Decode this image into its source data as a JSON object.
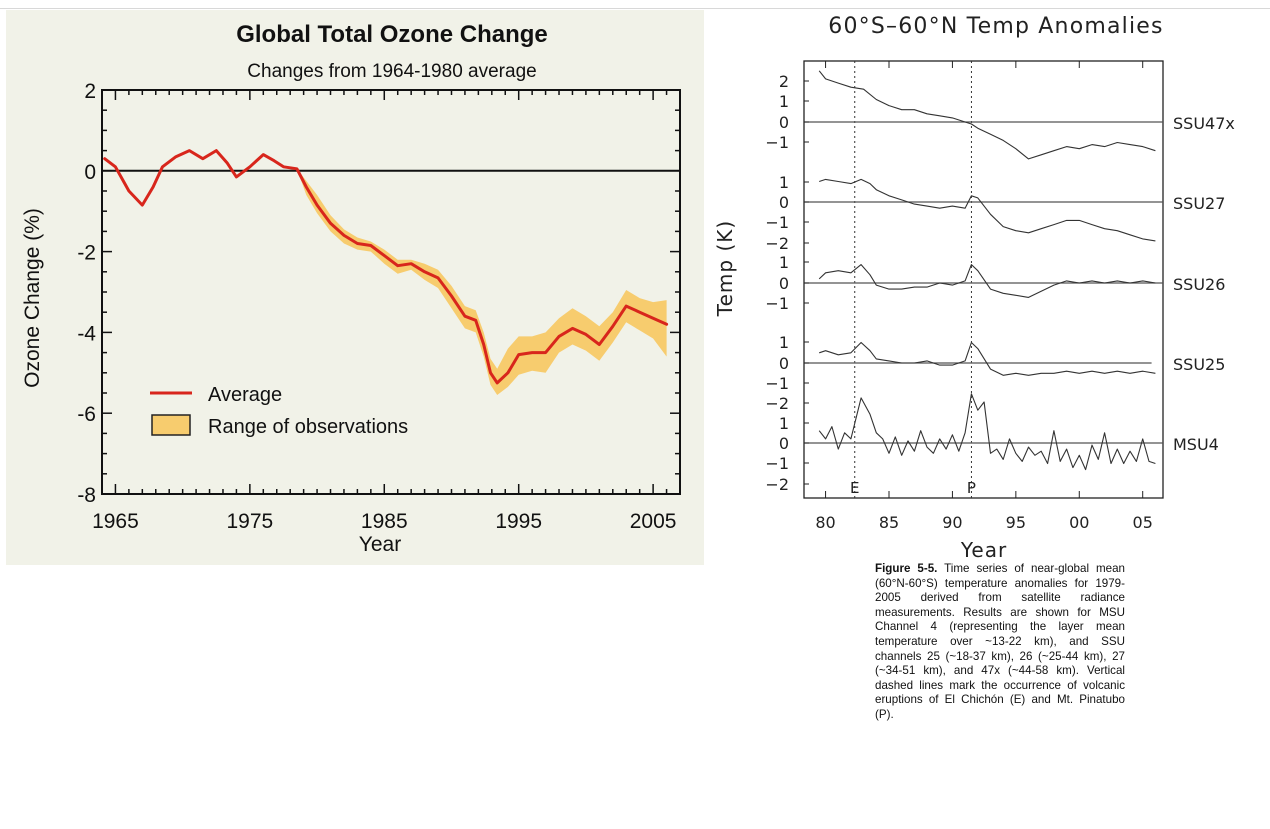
{
  "chart_data": [
    {
      "type": "area",
      "title": "Global Total Ozone Change",
      "subtitle": "Changes from 1964-1980 average",
      "xlabel": "Year",
      "ylabel": "Ozone Change (%)",
      "xlim": [
        1964,
        2007
      ],
      "ylim": [
        -8,
        2
      ],
      "x_ticks": [
        1965,
        1975,
        1985,
        1995,
        2005
      ],
      "y_ticks": [
        2,
        0,
        -2,
        -4,
        -6,
        -8
      ],
      "grid": false,
      "legend_position": "lower-left",
      "colors": {
        "average": "#d8261c",
        "range_fill": "#f7cc6e",
        "range_edge": "#8a6a1e",
        "background": "#f1f2e8"
      },
      "series": [
        {
          "name": "Average",
          "x": [
            1964.2,
            1965,
            1966,
            1967,
            1967.8,
            1968.5,
            1969.5,
            1970.5,
            1971.5,
            1972.5,
            1973.3,
            1974,
            1975,
            1976,
            1976.8,
            1977.5,
            1978.5,
            1979.2,
            1980,
            1981,
            1982,
            1983,
            1984,
            1985,
            1986,
            1987,
            1988,
            1989,
            1990,
            1991,
            1991.8,
            1992.4,
            1992.9,
            1993.4,
            1994.2,
            1995,
            1996,
            1997,
            1998,
            1999,
            2000,
            2001,
            2002,
            2003,
            2004,
            2005,
            2006
          ],
          "values": [
            0.3,
            0.1,
            -0.5,
            -0.85,
            -0.4,
            0.1,
            0.35,
            0.5,
            0.3,
            0.5,
            0.2,
            -0.15,
            0.1,
            0.4,
            0.25,
            0.1,
            0.05,
            -0.4,
            -0.85,
            -1.3,
            -1.6,
            -1.8,
            -1.85,
            -2.1,
            -2.35,
            -2.3,
            -2.5,
            -2.65,
            -3.1,
            -3.6,
            -3.7,
            -4.3,
            -5.0,
            -5.25,
            -5.0,
            -4.55,
            -4.5,
            -4.5,
            -4.1,
            -3.9,
            -4.05,
            -4.3,
            -3.85,
            -3.35,
            -3.5,
            -3.65,
            -3.8
          ]
        },
        {
          "name": "Range of observations",
          "x": [
            1978.5,
            1979.2,
            1980,
            1981,
            1982,
            1983,
            1984,
            1985,
            1986,
            1987,
            1988,
            1989,
            1990,
            1991,
            1991.8,
            1992.4,
            1992.9,
            1993.4,
            1994.2,
            1995,
            1996,
            1997,
            1998,
            1999,
            2000,
            2001,
            2002,
            2003,
            2004,
            2005,
            2006
          ],
          "upper": [
            0.05,
            -0.25,
            -0.6,
            -1.1,
            -1.45,
            -1.65,
            -1.75,
            -1.95,
            -2.2,
            -2.2,
            -2.3,
            -2.45,
            -2.85,
            -3.35,
            -3.45,
            -4.0,
            -4.65,
            -4.9,
            -4.4,
            -4.1,
            -4.1,
            -4.0,
            -3.65,
            -3.4,
            -3.6,
            -3.85,
            -3.5,
            -2.95,
            -3.15,
            -3.25,
            -3.2
          ],
          "lower": [
            0.05,
            -0.6,
            -1.05,
            -1.5,
            -1.8,
            -1.95,
            -2.0,
            -2.3,
            -2.55,
            -2.45,
            -2.7,
            -2.9,
            -3.4,
            -3.9,
            -4.0,
            -4.6,
            -5.3,
            -5.55,
            -5.35,
            -5.05,
            -4.95,
            -5.0,
            -4.5,
            -4.3,
            -4.45,
            -4.7,
            -4.25,
            -3.75,
            -3.95,
            -4.15,
            -4.6
          ]
        }
      ]
    },
    {
      "type": "line",
      "title": "60°S–60°N Temp Anomalies",
      "xlabel": "Year",
      "ylabel": "Temp (K)",
      "xlim": [
        1978.3,
        2006.6
      ],
      "x_ticks": [
        80,
        85,
        90,
        95,
        "00",
        "05"
      ],
      "grid": false,
      "annotations": [
        {
          "label": "E",
          "x": 1982.3,
          "meaning": "El Chichón"
        },
        {
          "label": "P",
          "x": 1991.5,
          "meaning": "Mt. Pinatubo"
        }
      ],
      "series": [
        {
          "name": "SSU47x",
          "y_ticks": [
            2,
            1,
            0,
            -1
          ],
          "x": [
            1979.5,
            1980,
            1981,
            1982,
            1983,
            1984,
            1985,
            1986,
            1987,
            1988,
            1989,
            1990,
            1991,
            1991.5,
            1992,
            1993,
            1994,
            1995,
            1996,
            1997,
            1998,
            1999,
            2000,
            2001,
            2002,
            2003,
            2004,
            2005,
            2006
          ],
          "values": [
            2.5,
            2.1,
            1.9,
            1.7,
            1.6,
            1.1,
            0.8,
            0.6,
            0.6,
            0.4,
            0.3,
            0.2,
            0.0,
            -0.1,
            -0.3,
            -0.6,
            -0.9,
            -1.3,
            -1.8,
            -1.6,
            -1.4,
            -1.2,
            -1.3,
            -1.1,
            -1.2,
            -1.0,
            -1.1,
            -1.2,
            -1.4
          ]
        },
        {
          "name": "SSU27",
          "y_ticks": [
            1,
            0,
            -1,
            -2
          ],
          "x": [
            1979.5,
            1980,
            1981,
            1982,
            1982.8,
            1983.5,
            1984,
            1985,
            1986,
            1987,
            1988,
            1989,
            1990,
            1991,
            1991.5,
            1992,
            1993,
            1994,
            1995,
            1996,
            1997,
            1998,
            1999,
            2000,
            2001,
            2002,
            2003,
            2004,
            2005,
            2006
          ],
          "values": [
            1.0,
            1.1,
            1.0,
            0.9,
            1.1,
            0.9,
            0.6,
            0.3,
            0.1,
            -0.1,
            -0.2,
            -0.3,
            -0.2,
            -0.3,
            0.3,
            0.2,
            -0.6,
            -1.2,
            -1.4,
            -1.5,
            -1.3,
            -1.1,
            -0.9,
            -0.9,
            -1.1,
            -1.3,
            -1.4,
            -1.6,
            -1.8,
            -1.9
          ]
        },
        {
          "name": "SSU26",
          "y_ticks": [
            1,
            0,
            -1
          ],
          "x": [
            1979.5,
            1980,
            1981,
            1982,
            1982.8,
            1983.5,
            1984,
            1985,
            1986,
            1987,
            1988,
            1989,
            1990,
            1991,
            1991.5,
            1992,
            1993,
            1994,
            1995,
            1996,
            1997,
            1998,
            1999,
            2000,
            2001,
            2002,
            2003,
            2004,
            2005,
            2006
          ],
          "values": [
            0.2,
            0.5,
            0.6,
            0.5,
            0.9,
            0.4,
            -0.1,
            -0.3,
            -0.3,
            -0.2,
            -0.2,
            0.0,
            -0.1,
            0.1,
            0.9,
            0.6,
            -0.3,
            -0.5,
            -0.6,
            -0.7,
            -0.4,
            -0.1,
            0.1,
            0.0,
            0.1,
            0.0,
            0.1,
            0.0,
            0.1,
            0.0
          ]
        },
        {
          "name": "SSU25",
          "y_ticks": [
            1,
            0,
            -1
          ],
          "x": [
            1979.5,
            1980,
            1981,
            1982,
            1982.8,
            1983.5,
            1984,
            1985,
            1986,
            1987,
            1988,
            1989,
            1990,
            1991,
            1991.5,
            1992,
            1993,
            1994,
            1995,
            1996,
            1997,
            1998,
            1999,
            2000,
            2001,
            2002,
            2003,
            2004,
            2005,
            2006
          ],
          "values": [
            0.5,
            0.6,
            0.4,
            0.5,
            1.0,
            0.6,
            0.2,
            0.1,
            0.0,
            0.0,
            0.1,
            -0.1,
            -0.1,
            0.1,
            1.0,
            0.7,
            -0.3,
            -0.6,
            -0.5,
            -0.6,
            -0.5,
            -0.5,
            -0.4,
            -0.5,
            -0.4,
            -0.5,
            -0.4,
            -0.5,
            -0.4,
            -0.5
          ]
        },
        {
          "name": "MSU4",
          "y_ticks": [
            -2,
            1,
            0,
            -1,
            -2
          ],
          "x": [
            1979.5,
            1980,
            1980.5,
            1981,
            1981.5,
            1982,
            1982.8,
            1983.5,
            1984,
            1984.5,
            1985,
            1985.5,
            1986,
            1986.5,
            1987,
            1987.5,
            1988,
            1988.5,
            1989,
            1989.5,
            1990,
            1990.5,
            1991,
            1991.5,
            1992,
            1992.5,
            1993,
            1993.5,
            1994,
            1994.5,
            1995,
            1995.5,
            1996,
            1996.5,
            1997,
            1997.5,
            1998,
            1998.5,
            1999,
            1999.5,
            2000,
            2000.5,
            2001,
            2001.5,
            2002,
            2002.5,
            2003,
            2003.5,
            2004,
            2004.5,
            2005,
            2005.5,
            2006
          ],
          "values": [
            0.6,
            0.2,
            0.8,
            -0.3,
            0.5,
            0.2,
            2.2,
            1.4,
            0.5,
            0.2,
            -0.5,
            0.3,
            -0.6,
            0.1,
            -0.4,
            0.6,
            -0.2,
            -0.5,
            0.2,
            -0.3,
            0.4,
            -0.4,
            0.5,
            2.4,
            1.6,
            2.0,
            -0.5,
            -0.3,
            -0.8,
            0.2,
            -0.5,
            -0.9,
            -0.2,
            -0.6,
            -0.4,
            -1.0,
            0.6,
            -0.9,
            -0.3,
            -1.2,
            -0.6,
            -1.3,
            -0.1,
            -0.8,
            0.5,
            -1.0,
            -0.3,
            -1.0,
            -0.4,
            -0.9,
            0.2,
            -0.9,
            -1.0
          ]
        }
      ]
    }
  ],
  "caption": {
    "figure_label": "Figure 5-5.",
    "text": "Time series of near-global mean (60°N-60°S) temperature anomalies for 1979-2005 derived from satellite radiance measurements. Results are shown for MSU Channel 4 (representing the layer mean temperature over ~13-22 km), and SSU channels 25 (~18-37 km), 26 (~25-44 km), 27 (~34-51 km), and 47x (~44-58 km). Vertical dashed lines mark the occurrence of volcanic eruptions of El Chichón (E) and Mt. Pinatubo (P)."
  }
}
